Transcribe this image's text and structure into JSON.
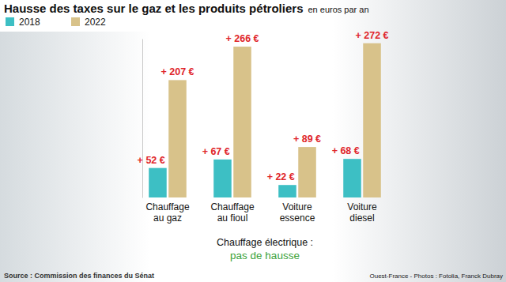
{
  "chart_data": {
    "type": "bar",
    "title": "Hausse des taxes sur le gaz et les produits pétroliers",
    "subtitle": "en euros par an",
    "categories": [
      "Chauffage au gaz",
      "Chauffage au fioul",
      "Voiture essence",
      "Voiture diesel"
    ],
    "series": [
      {
        "name": "2018",
        "color": "#3dbfc4",
        "values": [
          52,
          67,
          22,
          68
        ],
        "value_labels": [
          "+ 52 €",
          "+ 67 €",
          "+ 22 €",
          "+ 68 €"
        ]
      },
      {
        "name": "2022",
        "color": "#d8c28a",
        "values": [
          207,
          266,
          89,
          272
        ],
        "value_labels": [
          "+ 207 €",
          "+ 266 €",
          "+ 89 €",
          "+ 272 €"
        ]
      }
    ],
    "ylim": [
      0,
      280
    ],
    "tick_labels": false,
    "grid": false,
    "legend": "upper left",
    "data_labels": true,
    "annotations": [
      "Chauffage électrique :",
      "pas de hausse",
      "Source : Commission des finances du Sénat",
      "Ouest-France - Photos : Fotolia, Franck Dubray"
    ]
  }
}
